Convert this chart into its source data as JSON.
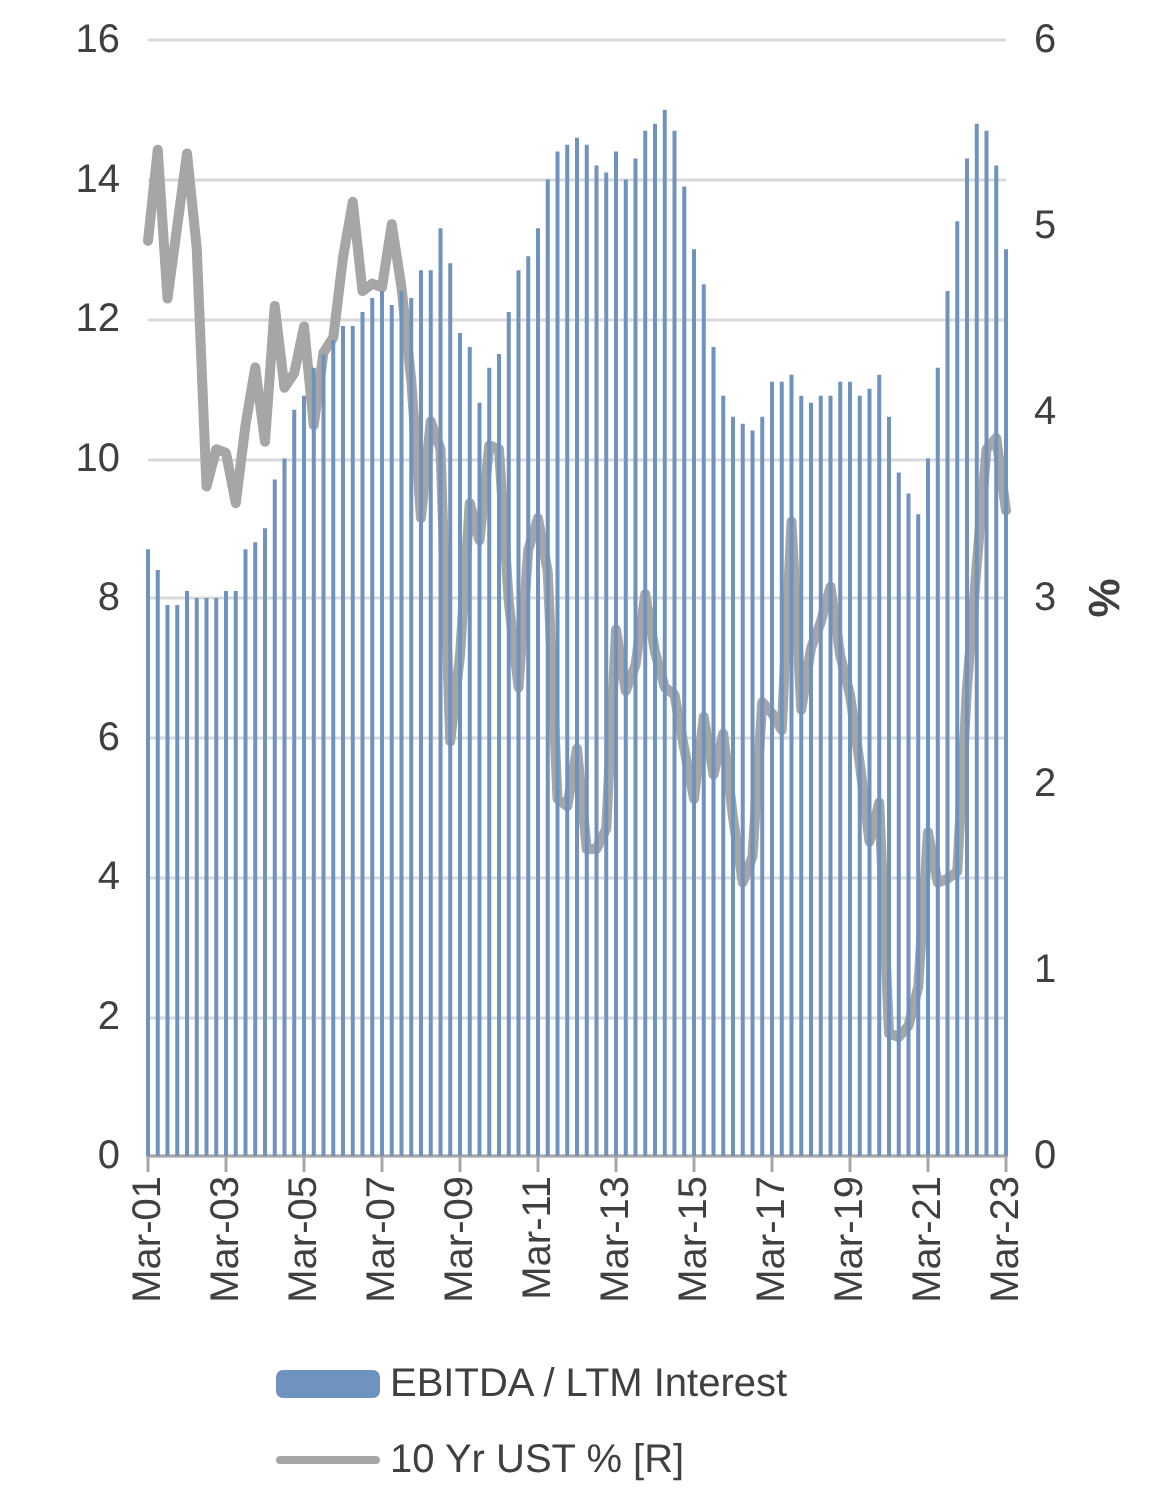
{
  "chart_data": {
    "type": "bar",
    "categories": [
      "Mar-01",
      null,
      null,
      null,
      null,
      null,
      null,
      null,
      "Mar-03",
      null,
      null,
      null,
      null,
      null,
      null,
      null,
      "Mar-05",
      null,
      null,
      null,
      null,
      null,
      null,
      null,
      "Mar-07",
      null,
      null,
      null,
      null,
      null,
      null,
      null,
      "Mar-09",
      null,
      null,
      null,
      null,
      null,
      null,
      null,
      "Mar-11",
      null,
      null,
      null,
      null,
      null,
      null,
      null,
      "Mar-13",
      null,
      null,
      null,
      null,
      null,
      null,
      null,
      "Mar-15",
      null,
      null,
      null,
      null,
      null,
      null,
      null,
      "Mar-17",
      null,
      null,
      null,
      null,
      null,
      null,
      null,
      "Mar-19",
      null,
      null,
      null,
      null,
      null,
      null,
      null,
      "Mar-21",
      null,
      null,
      null,
      null,
      null,
      null,
      null,
      "Mar-23"
    ],
    "series": [
      {
        "name": "EBITDA / LTM Interest",
        "color": "#7092be",
        "values": [
          8.7,
          8.4,
          7.9,
          7.9,
          8.1,
          8.0,
          8.0,
          8.0,
          8.1,
          8.1,
          8.7,
          8.8,
          9.0,
          9.7,
          10.0,
          10.7,
          10.9,
          11.3,
          11.5,
          11.7,
          11.9,
          11.9,
          12.1,
          12.3,
          12.4,
          12.2,
          12.4,
          12.3,
          12.7,
          12.7,
          13.3,
          12.8,
          11.8,
          11.6,
          10.8,
          11.3,
          11.5,
          12.1,
          12.7,
          12.9,
          13.3,
          14.0,
          14.4,
          14.5,
          14.6,
          14.5,
          14.2,
          14.1,
          14.4,
          14.0,
          14.3,
          14.7,
          14.8,
          15.0,
          14.7,
          13.9,
          13.0,
          12.5,
          11.6,
          10.9,
          10.6,
          10.5,
          10.4,
          10.6,
          11.1,
          11.1,
          11.2,
          10.9,
          10.8,
          10.9,
          10.9,
          11.1,
          11.1,
          10.9,
          11.0,
          11.2,
          10.6,
          9.8,
          9.5,
          9.2,
          10.0,
          11.3,
          12.4,
          13.4,
          14.3,
          14.8,
          14.7,
          14.2,
          13.0
        ]
      },
      {
        "name": "10 Yr UST % [R]",
        "type": "line",
        "axis": "y2",
        "color": "#a6a6a6",
        "values": [
          4.92,
          5.41,
          4.61,
          5.0,
          5.39,
          4.88,
          3.6,
          3.8,
          3.78,
          3.51,
          3.93,
          4.24,
          3.84,
          4.57,
          4.13,
          4.21,
          4.46,
          3.93,
          4.32,
          4.4,
          4.83,
          5.13,
          4.65,
          4.69,
          4.67,
          5.01,
          4.67,
          4.17,
          3.43,
          3.95,
          3.8,
          2.23,
          2.69,
          3.51,
          3.31,
          3.82,
          3.8,
          2.98,
          2.52,
          3.26,
          3.43,
          3.14,
          1.92,
          1.88,
          2.19,
          1.65,
          1.65,
          1.76,
          2.83,
          2.5,
          2.64,
          3.02,
          2.71,
          2.52,
          2.48,
          2.19,
          1.92,
          2.36,
          2.05,
          2.27,
          1.82,
          1.47,
          1.61,
          2.44,
          2.38,
          2.29,
          3.41,
          2.4,
          2.73,
          2.87,
          3.06,
          2.69,
          2.48,
          2.11,
          1.69,
          1.9,
          0.66,
          0.64,
          0.7,
          0.91,
          1.74,
          1.47,
          1.49,
          1.53,
          2.52,
          3.18,
          3.8,
          3.86,
          3.47
        ]
      }
    ],
    "ylim": [
      0,
      16
    ],
    "yticks": [
      0,
      2,
      4,
      6,
      8,
      10,
      12,
      14,
      16
    ],
    "y2label": "%",
    "y2lim": [
      0,
      6
    ],
    "y2ticks": [
      0,
      1,
      2,
      3,
      4,
      5,
      6
    ],
    "grid": "y",
    "legend": "bottom",
    "marker": "none",
    "line_style": "solid"
  }
}
